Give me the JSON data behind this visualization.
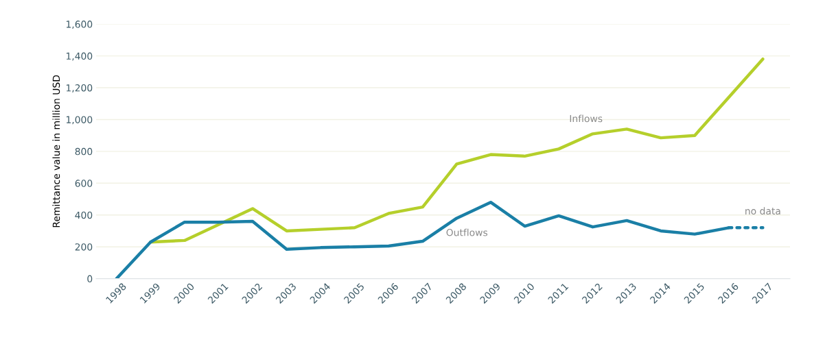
{
  "chart_data": {
    "type": "line",
    "ylabel": "Remittance value in million USD",
    "categories": [
      "1998",
      "1999",
      "2000",
      "2001",
      "2002",
      "2003",
      "2004",
      "2005",
      "2006",
      "2007",
      "2008",
      "2009",
      "2010",
      "2011",
      "2012",
      "2013",
      "2014",
      "2015",
      "2016",
      "2017"
    ],
    "series": [
      {
        "name": "Inflows",
        "color": "#b5cf2b",
        "values": [
          null,
          230,
          240,
          340,
          440,
          300,
          310,
          320,
          410,
          450,
          720,
          780,
          770,
          815,
          910,
          940,
          885,
          900,
          1140,
          1380
        ]
      },
      {
        "name": "Outflows",
        "color": "#1a7fa6",
        "values": [
          0,
          230,
          355,
          355,
          360,
          185,
          195,
          200,
          205,
          235,
          380,
          480,
          330,
          395,
          325,
          365,
          300,
          280,
          320,
          null
        ]
      },
      {
        "color": "#1a7fa6",
        "line_style": "dotted",
        "values": [
          null,
          null,
          null,
          null,
          null,
          null,
          null,
          null,
          null,
          null,
          null,
          null,
          null,
          null,
          null,
          null,
          null,
          null,
          320,
          320
        ]
      }
    ],
    "annotations": [
      {
        "text": "no data",
        "x": "2017",
        "y": 320
      }
    ],
    "ylim": [
      0,
      1600
    ],
    "yticks": [
      {
        "value": 0,
        "label": "0"
      },
      {
        "value": 200,
        "label": "200"
      },
      {
        "value": 400,
        "label": "400"
      },
      {
        "value": 600,
        "label": "600"
      },
      {
        "value": 800,
        "label": "800"
      },
      {
        "value": 1000,
        "label": "1,000"
      },
      {
        "value": 1200,
        "label": "1,200"
      },
      {
        "value": 1400,
        "label": "1,400"
      },
      {
        "value": 1600,
        "label": "1,600"
      }
    ],
    "grid": "y",
    "legend": false
  }
}
